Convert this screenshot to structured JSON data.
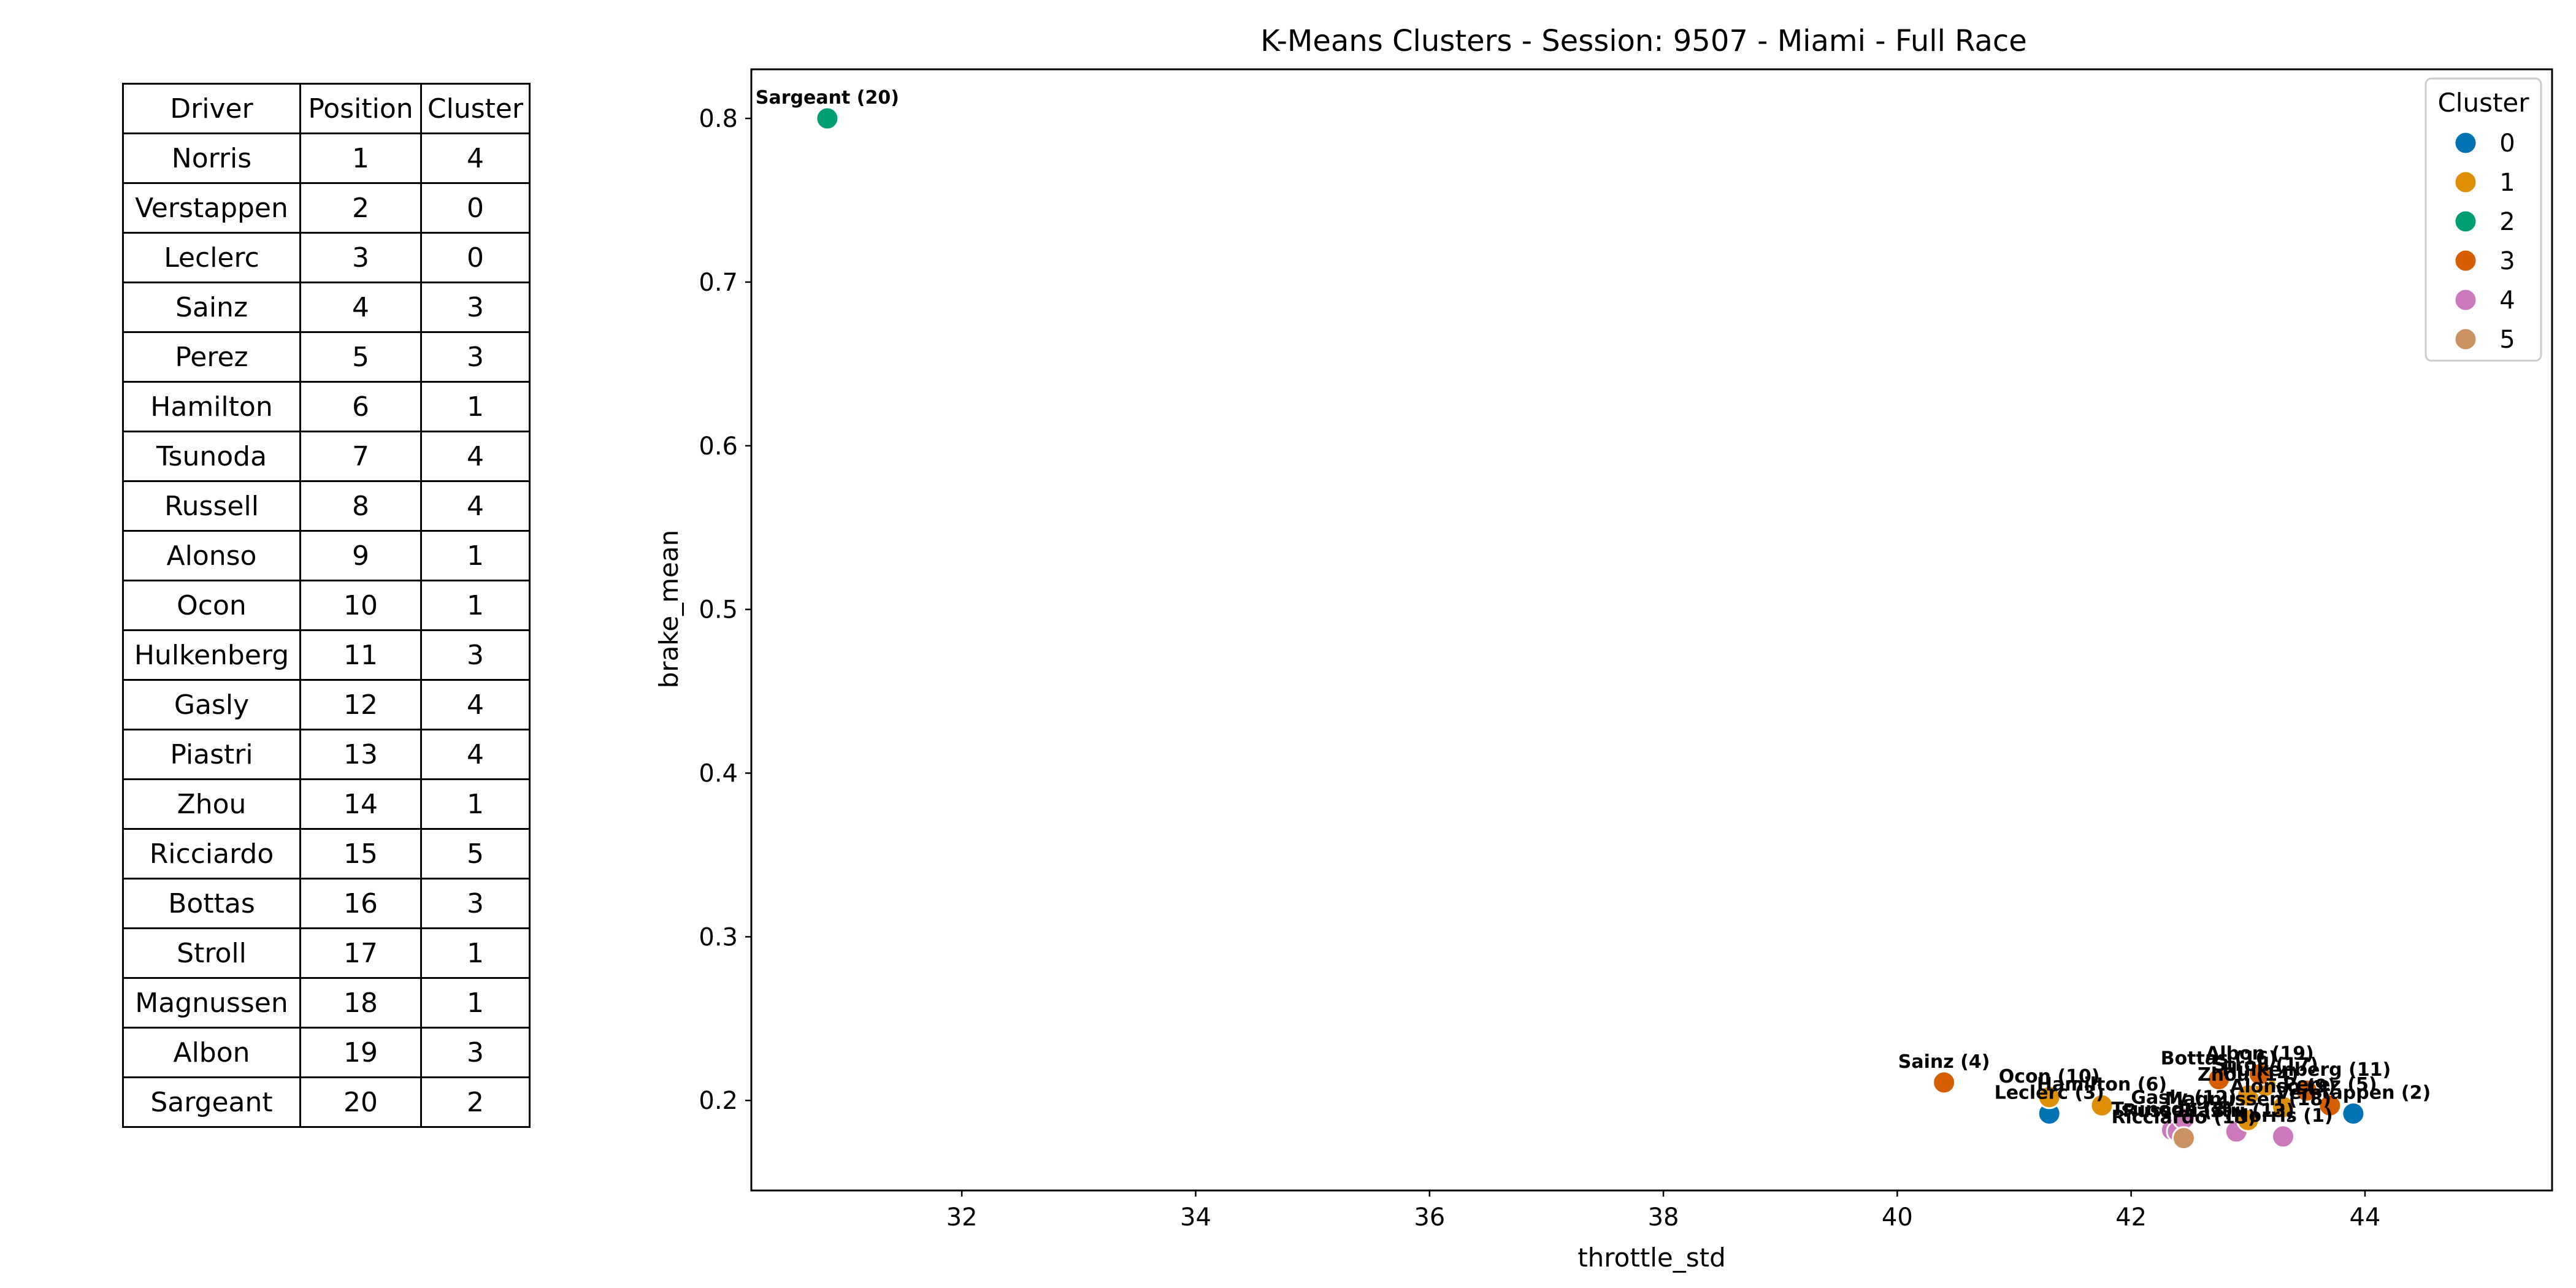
{
  "table": {
    "headers": [
      "Driver",
      "Position",
      "Cluster"
    ],
    "rows": [
      [
        "Norris",
        "1",
        "4"
      ],
      [
        "Verstappen",
        "2",
        "0"
      ],
      [
        "Leclerc",
        "3",
        "0"
      ],
      [
        "Sainz",
        "4",
        "3"
      ],
      [
        "Perez",
        "5",
        "3"
      ],
      [
        "Hamilton",
        "6",
        "1"
      ],
      [
        "Tsunoda",
        "7",
        "4"
      ],
      [
        "Russell",
        "8",
        "4"
      ],
      [
        "Alonso",
        "9",
        "1"
      ],
      [
        "Ocon",
        "10",
        "1"
      ],
      [
        "Hulkenberg",
        "11",
        "3"
      ],
      [
        "Gasly",
        "12",
        "4"
      ],
      [
        "Piastri",
        "13",
        "4"
      ],
      [
        "Zhou",
        "14",
        "1"
      ],
      [
        "Ricciardo",
        "15",
        "5"
      ],
      [
        "Bottas",
        "16",
        "3"
      ],
      [
        "Stroll",
        "17",
        "1"
      ],
      [
        "Magnussen",
        "18",
        "1"
      ],
      [
        "Albon",
        "19",
        "3"
      ],
      [
        "Sargeant",
        "20",
        "2"
      ]
    ]
  },
  "chart_data": {
    "type": "scatter",
    "title": "K-Means Clusters - Session: 9507 - Miami - Full Race",
    "xlabel": "throttle_std",
    "ylabel": "brake_mean",
    "xlim": [
      30.2,
      45.6
    ],
    "ylim": [
      0.145,
      0.83
    ],
    "xticks": [
      32,
      34,
      36,
      38,
      40,
      42,
      44
    ],
    "yticks": [
      0.2,
      0.3,
      0.4,
      0.5,
      0.6,
      0.7,
      0.8
    ],
    "grid": false,
    "legend": {
      "title": "Cluster",
      "placement": "top-right",
      "entries": [
        {
          "label": "0",
          "color": "#0173b2"
        },
        {
          "label": "1",
          "color": "#de8f05"
        },
        {
          "label": "2",
          "color": "#029e73"
        },
        {
          "label": "3",
          "color": "#d55e00"
        },
        {
          "label": "4",
          "color": "#cc78bc"
        },
        {
          "label": "5",
          "color": "#ca9161"
        }
      ]
    },
    "points": [
      {
        "label": "Norris (1)",
        "x": 43.3,
        "y": 0.178,
        "cluster": 4
      },
      {
        "label": "Verstappen (2)",
        "x": 43.9,
        "y": 0.192,
        "cluster": 0
      },
      {
        "label": "Leclerc (3)",
        "x": 41.3,
        "y": 0.192,
        "cluster": 0
      },
      {
        "label": "Sainz (4)",
        "x": 40.4,
        "y": 0.211,
        "cluster": 3
      },
      {
        "label": "Perez (5)",
        "x": 43.7,
        "y": 0.197,
        "cluster": 3
      },
      {
        "label": "Hamilton (6)",
        "x": 41.75,
        "y": 0.197,
        "cluster": 1
      },
      {
        "label": "Tsunoda (7)",
        "x": 42.35,
        "y": 0.182,
        "cluster": 4
      },
      {
        "label": "Russell (8)",
        "x": 42.4,
        "y": 0.181,
        "cluster": 4
      },
      {
        "label": "Alonso (9)",
        "x": 43.3,
        "y": 0.196,
        "cluster": 1
      },
      {
        "label": "Ocon (10)",
        "x": 41.3,
        "y": 0.202,
        "cluster": 1
      },
      {
        "label": "Hulkenberg (11)",
        "x": 43.5,
        "y": 0.206,
        "cluster": 3
      },
      {
        "label": "Gasly (12)",
        "x": 42.45,
        "y": 0.189,
        "cluster": 4
      },
      {
        "label": "Piastri (13)",
        "x": 42.9,
        "y": 0.181,
        "cluster": 4
      },
      {
        "label": "Zhou (14)",
        "x": 43.0,
        "y": 0.203,
        "cluster": 1
      },
      {
        "label": "Ricciardo (15)",
        "x": 42.45,
        "y": 0.177,
        "cluster": 5
      },
      {
        "label": "Bottas (16)",
        "x": 42.75,
        "y": 0.213,
        "cluster": 3
      },
      {
        "label": "Stroll (17)",
        "x": 43.15,
        "y": 0.209,
        "cluster": 1
      },
      {
        "label": "Magnussen (18)",
        "x": 43.0,
        "y": 0.188,
        "cluster": 1
      },
      {
        "label": "Albon (19)",
        "x": 43.1,
        "y": 0.216,
        "cluster": 3
      },
      {
        "label": "Sargeant (20)",
        "x": 30.85,
        "y": 0.8,
        "cluster": 2
      }
    ]
  }
}
